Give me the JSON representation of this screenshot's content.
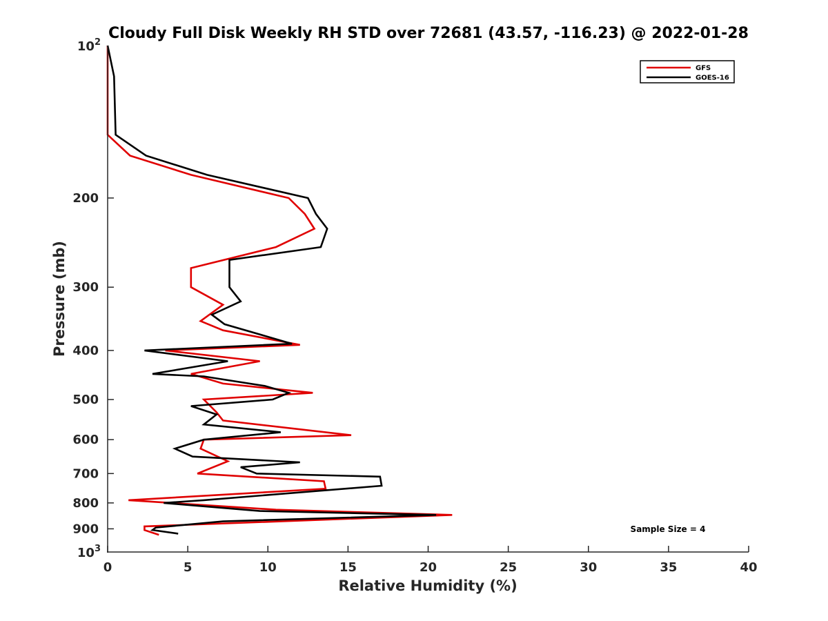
{
  "chart_data": {
    "type": "line",
    "title": "Cloudy Full Disk Weekly RH STD over 72681 (43.57, -116.23) @ 2022-01-28",
    "xlabel": "Relative Humidity (%)",
    "ylabel": "Pressure (mb)",
    "xlim": [
      0,
      40
    ],
    "ylim": [
      100,
      1000
    ],
    "y_scale": "log",
    "y_reversed": true,
    "grid": false,
    "legend_position": "top-right",
    "x_ticks": [
      0,
      5,
      10,
      15,
      20,
      25,
      30,
      35,
      40
    ],
    "x_tick_labels": [
      "0",
      "5",
      "10",
      "15",
      "20",
      "25",
      "30",
      "35",
      "40"
    ],
    "y_ticks": [
      200,
      300,
      400,
      500,
      600,
      700,
      800,
      900
    ],
    "y_tick_labels": [
      "200",
      "300",
      "400",
      "500",
      "600",
      "700",
      "800",
      "900"
    ],
    "y_limit_labels": [
      {
        "value": 100,
        "base": "10",
        "exp": "2"
      },
      {
        "value": 1000,
        "base": "10",
        "exp": "3"
      }
    ],
    "series": [
      {
        "name": "GFS",
        "color": "#e00000",
        "points": [
          [
            0,
            100
          ],
          [
            0,
            150
          ],
          [
            1.4,
            165
          ],
          [
            5.2,
            180
          ],
          [
            11.3,
            200
          ],
          [
            12.3,
            215
          ],
          [
            12.9,
            230
          ],
          [
            10.5,
            250
          ],
          [
            5.2,
            275
          ],
          [
            5.2,
            300
          ],
          [
            7.2,
            325
          ],
          [
            5.8,
            350
          ],
          [
            7.2,
            365
          ],
          [
            12.0,
            390
          ],
          [
            3.6,
            400
          ],
          [
            9.5,
            420
          ],
          [
            5.2,
            445
          ],
          [
            7.2,
            465
          ],
          [
            12.8,
            485
          ],
          [
            6.0,
            500
          ],
          [
            6.8,
            530
          ],
          [
            7.2,
            550
          ],
          [
            15.2,
            588
          ],
          [
            6.0,
            600
          ],
          [
            5.8,
            625
          ],
          [
            7.5,
            662
          ],
          [
            5.6,
            700
          ],
          [
            13.5,
            725
          ],
          [
            13.6,
            750
          ],
          [
            1.3,
            790
          ],
          [
            10.5,
            825
          ],
          [
            21.5,
            845
          ],
          [
            2.3,
            890
          ],
          [
            2.3,
            905
          ],
          [
            3.2,
            925
          ]
        ]
      },
      {
        "name": "GOES-16",
        "color": "#000000",
        "points": [
          [
            0,
            100
          ],
          [
            0.4,
            115
          ],
          [
            0.5,
            150
          ],
          [
            2.4,
            165
          ],
          [
            6.2,
            180
          ],
          [
            12.5,
            200
          ],
          [
            13.0,
            215
          ],
          [
            13.7,
            230
          ],
          [
            13.3,
            250
          ],
          [
            7.6,
            265
          ],
          [
            7.6,
            300
          ],
          [
            8.3,
            320
          ],
          [
            6.5,
            340
          ],
          [
            7.3,
            355
          ],
          [
            11.5,
            388
          ],
          [
            2.3,
            400
          ],
          [
            7.5,
            420
          ],
          [
            2.8,
            445
          ],
          [
            6.0,
            450
          ],
          [
            9.8,
            470
          ],
          [
            11.3,
            485
          ],
          [
            10.3,
            500
          ],
          [
            5.2,
            515
          ],
          [
            6.8,
            535
          ],
          [
            6.0,
            560
          ],
          [
            10.8,
            580
          ],
          [
            6.0,
            600
          ],
          [
            4.2,
            625
          ],
          [
            5.3,
            648
          ],
          [
            12.0,
            665
          ],
          [
            8.3,
            680
          ],
          [
            9.3,
            700
          ],
          [
            17.0,
            710
          ],
          [
            17.1,
            740
          ],
          [
            6.0,
            790
          ],
          [
            3.5,
            800
          ],
          [
            9.5,
            830
          ],
          [
            20.5,
            845
          ],
          [
            7.2,
            870
          ],
          [
            3.0,
            895
          ],
          [
            2.8,
            905
          ],
          [
            4.4,
            920
          ]
        ]
      }
    ],
    "annotation": "Sample Size = 4"
  }
}
